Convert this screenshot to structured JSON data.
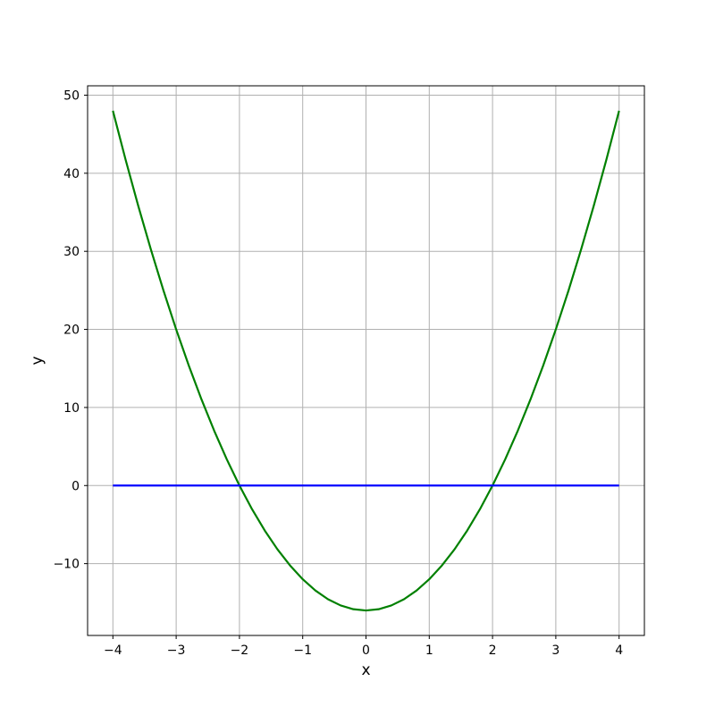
{
  "figure": {
    "background": "#ffffff",
    "plot_background": "#ffffff"
  },
  "chart_data": {
    "type": "line",
    "title": "",
    "xlabel": "x",
    "ylabel": "y",
    "xlim": [
      -4.4,
      4.4
    ],
    "ylim": [
      -19.2,
      51.2
    ],
    "xticks": [
      -4,
      -3,
      -2,
      -1,
      0,
      1,
      2,
      3,
      4
    ],
    "xtick_labels": [
      "−4",
      "−3",
      "−2",
      "−1",
      "0",
      "1",
      "2",
      "3",
      "4"
    ],
    "yticks": [
      -10,
      0,
      10,
      20,
      30,
      40,
      50
    ],
    "ytick_labels": [
      "−10",
      "0",
      "10",
      "20",
      "30",
      "40",
      "50"
    ],
    "grid": true,
    "legend": "none",
    "colors": {
      "grid": "#b0b0b0",
      "spine": "#000000",
      "tick": "#000000",
      "text": "#000000"
    },
    "series": [
      {
        "name": "green-parabola",
        "formula": "y = 4x^2 - 16",
        "color": "#008000",
        "linewidth": 2.2,
        "x": [
          -4,
          -3.8,
          -3.6,
          -3.4,
          -3.2,
          -3,
          -2.8,
          -2.6,
          -2.4,
          -2.2,
          -2,
          -1.8,
          -1.6,
          -1.4,
          -1.2,
          -1,
          -0.8,
          -0.6,
          -0.4,
          -0.2,
          0,
          0.2,
          0.4,
          0.6,
          0.8,
          1,
          1.2,
          1.4,
          1.6,
          1.8,
          2,
          2.2,
          2.4,
          2.6,
          2.8,
          3,
          3.2,
          3.4,
          3.6,
          3.8,
          4
        ],
        "y": [
          48,
          41.76,
          35.84,
          30.24,
          24.96,
          20,
          15.36,
          11.04,
          7.04,
          3.36,
          0,
          -3.04,
          -5.76,
          -8.16,
          -10.24,
          -12,
          -13.44,
          -14.56,
          -15.36,
          -15.84,
          -16,
          -15.84,
          -15.36,
          -14.56,
          -13.44,
          -12,
          -10.24,
          -8.16,
          -5.76,
          -3.04,
          0,
          3.36,
          7.04,
          11.04,
          15.36,
          20,
          24.96,
          30.24,
          35.84,
          41.76,
          48
        ]
      },
      {
        "name": "blue-horizontal-line",
        "formula": "y = 0",
        "color": "#0000ff",
        "linewidth": 2.2,
        "x": [
          -4,
          4
        ],
        "y": [
          0,
          0
        ]
      }
    ]
  }
}
